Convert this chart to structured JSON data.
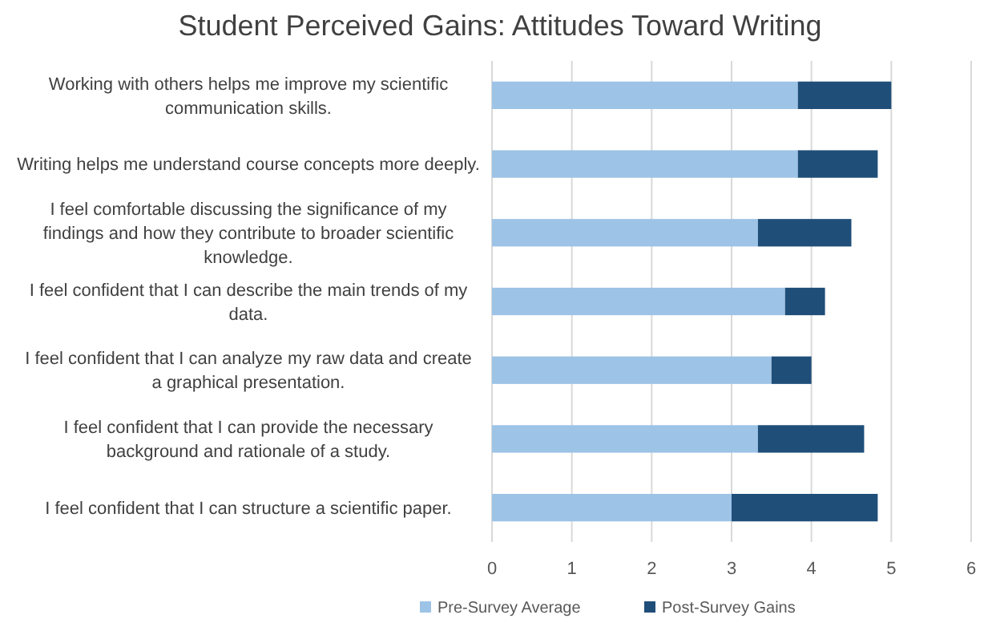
{
  "chart_data": {
    "type": "bar",
    "orientation": "horizontal",
    "stacked": true,
    "title": "Student Perceived Gains: Attitudes Toward Writing",
    "categories": [
      "Working with others helps me improve my scientific communication skills.",
      "Writing helps me understand course concepts more deeply.",
      "I feel comfortable discussing the significance of my findings and how they contribute to broader scientific knowledge.",
      "I feel confident that I can describe the main trends of my data.",
      "I feel confident that I can analyze my raw data and create a graphical presentation.",
      "I feel confident that I can provide the necessary background and rationale of a study.",
      "I feel confident that I can structure a scientific paper."
    ],
    "series": [
      {
        "name": "Pre-Survey Average",
        "color": "#9dc3e6",
        "values": [
          3.83,
          3.83,
          3.33,
          3.67,
          3.5,
          3.33,
          3.0
        ]
      },
      {
        "name": "Post-Survey Gains",
        "color": "#1f4e79",
        "values": [
          1.17,
          1.0,
          1.17,
          0.5,
          0.5,
          1.33,
          1.83
        ]
      }
    ],
    "xlim": [
      0,
      6
    ],
    "xticks": [
      0,
      1,
      2,
      3,
      4,
      5,
      6
    ],
    "grid": "x",
    "legend": "bottom"
  }
}
